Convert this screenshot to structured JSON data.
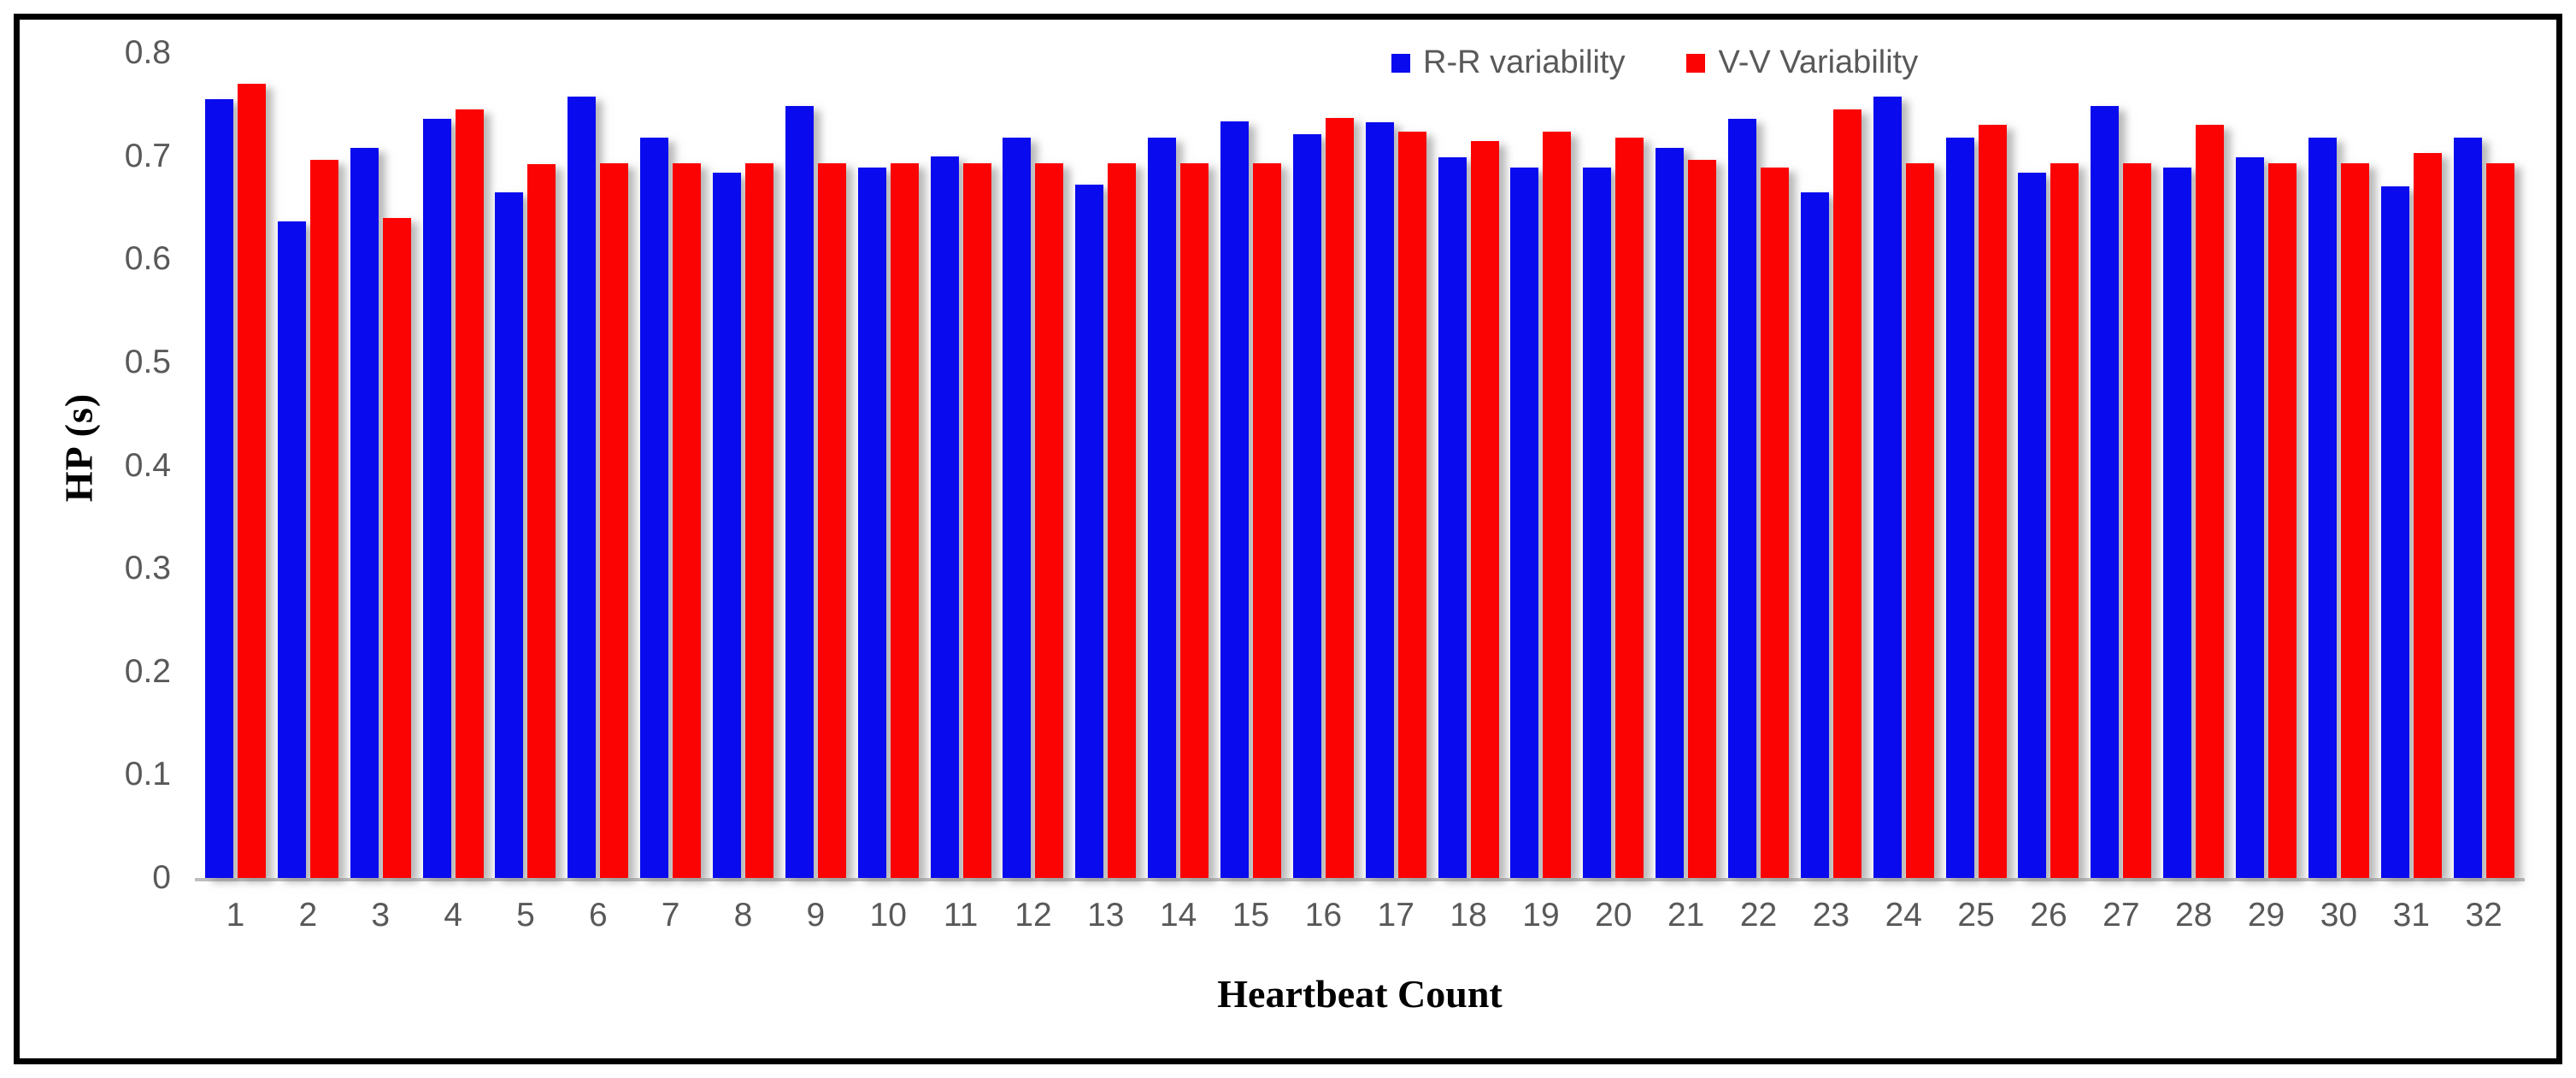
{
  "figure": {
    "background": "#ffffff",
    "border_color": "#000000",
    "axis_line_color": "#bfbfbf",
    "tick_label_color": "#595959"
  },
  "chart_data": {
    "type": "bar",
    "title": "",
    "xlabel": "Heartbeat Count",
    "ylabel": "HP (s)",
    "ylim": [
      0,
      0.8
    ],
    "yticks": [
      "0",
      "0.1",
      "0.2",
      "0.3",
      "0.4",
      "0.5",
      "0.6",
      "0.7",
      "0.8"
    ],
    "ytick_values": [
      0,
      0.1,
      0.2,
      0.3,
      0.4,
      0.5,
      0.6,
      0.7,
      0.8
    ],
    "grid": false,
    "legend_position": "top-center",
    "categories": [
      "1",
      "2",
      "3",
      "4",
      "5",
      "6",
      "7",
      "8",
      "9",
      "10",
      "11",
      "12",
      "13",
      "14",
      "15",
      "16",
      "17",
      "18",
      "19",
      "20",
      "21",
      "22",
      "23",
      "24",
      "25",
      "26",
      "27",
      "28",
      "29",
      "30",
      "31",
      "32"
    ],
    "series": [
      {
        "name": "R-R variability",
        "color": "#0a0aee",
        "values": [
          0.755,
          0.637,
          0.708,
          0.736,
          0.665,
          0.758,
          0.718,
          0.684,
          0.749,
          0.689,
          0.7,
          0.718,
          0.672,
          0.718,
          0.734,
          0.721,
          0.733,
          0.699,
          0.689,
          0.689,
          0.708,
          0.736,
          0.665,
          0.758,
          0.718,
          0.684,
          0.749,
          0.689,
          0.699,
          0.718,
          0.671,
          0.718
        ]
      },
      {
        "name": "V-V Variability",
        "color": "#fb0303",
        "values": [
          0.77,
          0.696,
          0.64,
          0.745,
          0.692,
          0.693,
          0.693,
          0.693,
          0.693,
          0.693,
          0.693,
          0.693,
          0.693,
          0.693,
          0.693,
          0.737,
          0.724,
          0.715,
          0.724,
          0.718,
          0.696,
          0.689,
          0.745,
          0.693,
          0.73,
          0.693,
          0.693,
          0.73,
          0.693,
          0.693,
          0.703,
          0.693
        ]
      }
    ]
  }
}
